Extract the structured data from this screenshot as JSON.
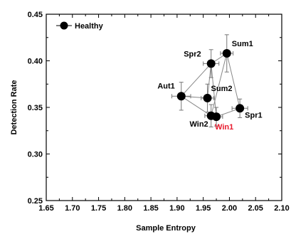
{
  "chart_data": {
    "type": "scatter",
    "title": "",
    "xlabel": "Sample Entropy",
    "ylabel": "Detection Rate",
    "xlim": [
      1.65,
      2.1
    ],
    "ylim": [
      0.25,
      0.45
    ],
    "x_ticks": [
      "1.65",
      "1.70",
      "1.75",
      "1.80",
      "1.85",
      "1.90",
      "1.95",
      "2.00",
      "2.05",
      "2.10"
    ],
    "y_ticks": [
      "0.25",
      "0.30",
      "0.35",
      "0.40",
      "0.45"
    ],
    "grid": false,
    "legend": {
      "position": "top-left",
      "entries": [
        "Healthy"
      ]
    },
    "series": [
      {
        "name": "Healthy",
        "color": "#000000",
        "points": [
          {
            "label": "Sum1",
            "x": 1.995,
            "y": 0.408,
            "xerr": 0.012,
            "yerr": 0.02,
            "label_color": "#000000"
          },
          {
            "label": "Spr2",
            "x": 1.965,
            "y": 0.397,
            "xerr": 0.015,
            "yerr": 0.015,
            "label_color": "#000000"
          },
          {
            "label": "Aut1",
            "x": 1.908,
            "y": 0.362,
            "xerr": 0.018,
            "yerr": 0.015,
            "label_color": "#000000"
          },
          {
            "label": "Sum2",
            "x": 1.958,
            "y": 0.36,
            "xerr": 0.012,
            "yerr": 0.015,
            "label_color": "#000000"
          },
          {
            "label": "Spr1",
            "x": 2.02,
            "y": 0.349,
            "xerr": 0.015,
            "yerr": 0.01,
            "label_color": "#000000"
          },
          {
            "label": "Win2",
            "x": 1.965,
            "y": 0.341,
            "xerr": 0.012,
            "yerr": 0.012,
            "label_color": "#000000"
          },
          {
            "label": "Win1",
            "x": 1.975,
            "y": 0.34,
            "xerr": 0.012,
            "yerr": 0.01,
            "label_color": "#e8192c"
          }
        ],
        "connections": [
          [
            "Sum1",
            "Spr2"
          ],
          [
            "Sum1",
            "Spr1"
          ],
          [
            "Sum1",
            "Win2"
          ],
          [
            "Spr2",
            "Aut1"
          ],
          [
            "Spr2",
            "Sum2"
          ],
          [
            "Spr2",
            "Win1"
          ],
          [
            "Aut1",
            "Sum2"
          ],
          [
            "Aut1",
            "Win2"
          ],
          [
            "Win2",
            "Win1"
          ],
          [
            "Win1",
            "Spr1"
          ]
        ]
      }
    ]
  }
}
